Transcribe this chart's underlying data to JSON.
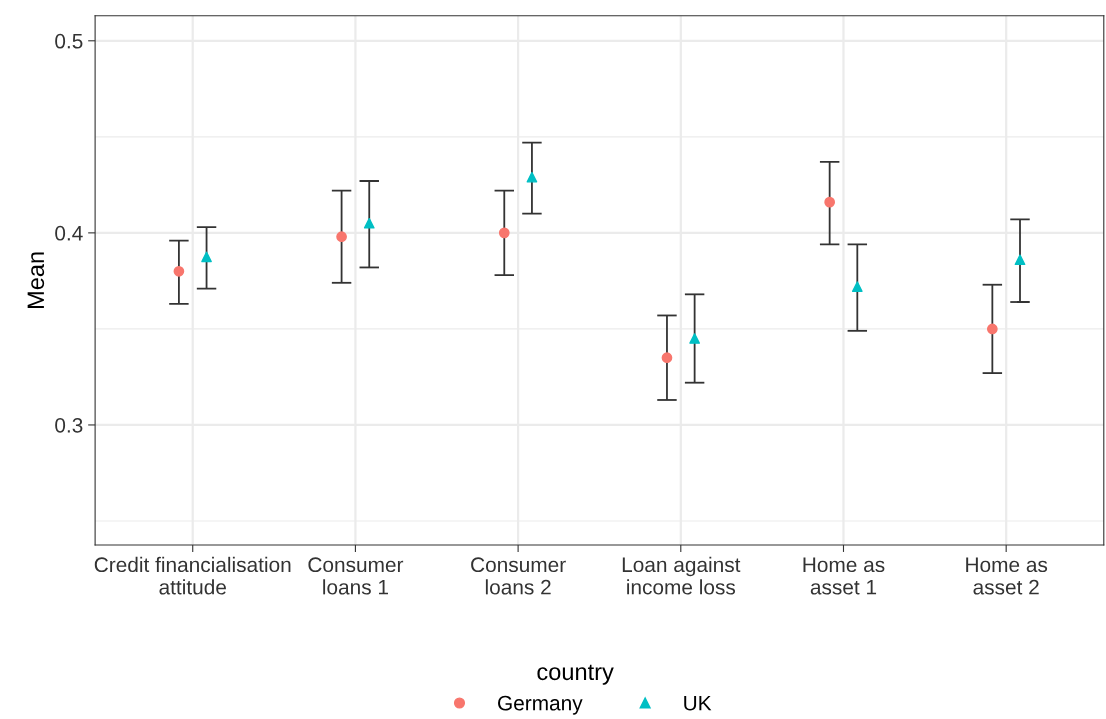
{
  "chart_data": {
    "type": "scatter",
    "ylabel": "Mean",
    "legend_title": "country",
    "legend": "bottom",
    "grid": true,
    "categories": [
      "Credit financialisation\nattitude",
      "Consumer\nloans 1",
      "Consumer\nloans 2",
      "Loan against\nincome loss",
      "Home as\nasset 1",
      "Home as\nasset 2"
    ],
    "ylim": [
      0.2375,
      0.513
    ],
    "yticks": [
      {
        "value": 0.25,
        "label": null
      },
      0.3,
      {
        "value": 0.35,
        "label": null
      },
      0.4,
      {
        "value": 0.45,
        "label": null
      },
      0.5
    ],
    "series": [
      {
        "name": "Germany",
        "color": "#f8766d",
        "marker": "circle",
        "values": [
          0.38,
          0.398,
          0.4,
          0.335,
          0.416,
          0.35
        ],
        "errors": [
          [
            0.363,
            0.396
          ],
          [
            0.374,
            0.422
          ],
          [
            0.378,
            0.422
          ],
          [
            0.313,
            0.357
          ],
          [
            0.394,
            0.437
          ],
          [
            0.327,
            0.373
          ]
        ]
      },
      {
        "name": "UK",
        "color": "#00bfc4",
        "marker": "triangle",
        "values": [
          0.3875,
          0.405,
          0.429,
          0.345,
          0.372,
          0.386
        ],
        "errors": [
          [
            0.371,
            0.403
          ],
          [
            0.382,
            0.427
          ],
          [
            0.41,
            0.447
          ],
          [
            0.322,
            0.368
          ],
          [
            0.349,
            0.394
          ],
          [
            0.364,
            0.407
          ]
        ]
      }
    ]
  }
}
